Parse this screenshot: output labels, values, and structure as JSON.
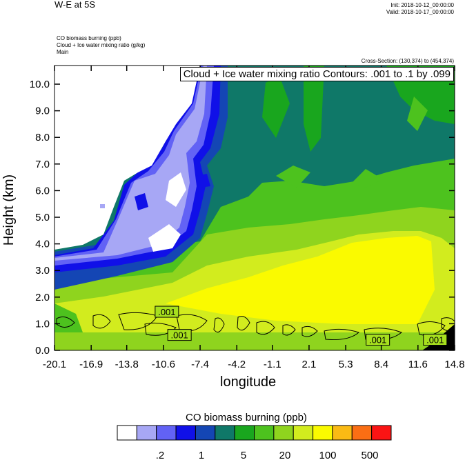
{
  "header": {
    "title_left": "W-E at 5S",
    "init": "Init: 2018-10-12_00:00:00",
    "valid": "Valid: 2018-10-17_00:00:00",
    "field1": "CO biomass burning   (ppb)",
    "field2": "Cloud + Ice water mixing ratio   (g/kg)",
    "field3": "Main",
    "cross_section": "Cross-Section: (130,374) to (454,374)"
  },
  "overlay_label": "Cloud + Ice water mixing ratio Contours: .001 to .1 by .099",
  "colors": {
    "levels": [
      "#ffffff",
      "#a7a7f5",
      "#6262f5",
      "#1010e8",
      "#1446b4",
      "#0f7868",
      "#19a61e",
      "#4dc21e",
      "#8fd41e",
      "#d2ec1e",
      "#fafa00",
      "#faba14",
      "#fa6e14",
      "#fa1414"
    ]
  },
  "chart_data": {
    "type": "heatmap",
    "xlabel": "longitude",
    "ylabel": "Height (km)",
    "x_ticks": [
      "-20.1",
      "-16.9",
      "-13.8",
      "-10.6",
      "-7.4",
      "-4.2",
      "-1.1",
      "2.1",
      "5.3",
      "8.4",
      "11.6",
      "14.8"
    ],
    "x_tick_values": [
      -20.1,
      -16.9,
      -13.8,
      -10.6,
      -7.4,
      -4.2,
      -1.1,
      2.1,
      5.3,
      8.4,
      11.6,
      14.8
    ],
    "y_ticks": [
      "0.0",
      "1.0",
      "2.0",
      "3.0",
      "4.0",
      "5.0",
      "6.0",
      "7.0",
      "8.0",
      "9.0",
      "10.0"
    ],
    "y_tick_values": [
      0,
      1,
      2,
      3,
      4,
      5,
      6,
      7,
      8,
      9,
      10
    ],
    "xlim": [
      -20.1,
      14.8
    ],
    "ylim": [
      0,
      10.7
    ],
    "contour_labels": [
      {
        "text": ".001",
        "x": -10.3,
        "y": 1.45
      },
      {
        "text": ".001",
        "x": -9.2,
        "y": 0.58
      },
      {
        "text": ".001",
        "x": 8.1,
        "y": 0.4
      },
      {
        "text": ".001",
        "x": 13.1,
        "y": 0.4
      }
    ],
    "colorbar": {
      "title": "CO biomass burning  (ppb)",
      "labels": [
        ".2",
        "1",
        "5",
        "20",
        "100",
        "500"
      ]
    }
  }
}
